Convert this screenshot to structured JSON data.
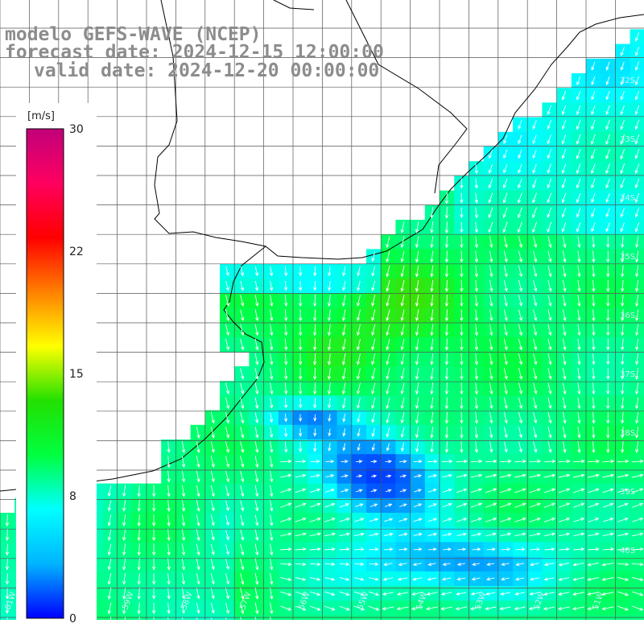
{
  "title": {
    "line1": "modelo GEFS-WAVE (NCEP)",
    "line2": "forecast date: 2024-12-15 12:00:00",
    "line3": "valid date: 2024-12-20 00:00:00"
  },
  "colorbar": {
    "unit": "[m/s]",
    "ticks": [
      "30",
      "22",
      "15",
      "8",
      "0"
    ],
    "stops": [
      "#0000ff",
      "#00b4ff",
      "#00ffff",
      "#00ff40",
      "#22e000",
      "#ffff00",
      "#ff8000",
      "#ff0000",
      "#ff0060",
      "#c0007a"
    ]
  },
  "axes": {
    "lat_labels": [
      "32S",
      "33S",
      "34S",
      "35S",
      "36S",
      "37S",
      "38S",
      "39S",
      "40S"
    ],
    "lon_labels": [
      "61W",
      "60W",
      "59W",
      "58W",
      "57W",
      "56W",
      "55W",
      "54W",
      "53W",
      "52W",
      "51W"
    ]
  },
  "colors": {
    "land": "#ffffff",
    "grid": "#555555",
    "coast": "#000000",
    "arrow": "#ffffff"
  },
  "legend_position": "left",
  "field_description_hidden": ""
}
